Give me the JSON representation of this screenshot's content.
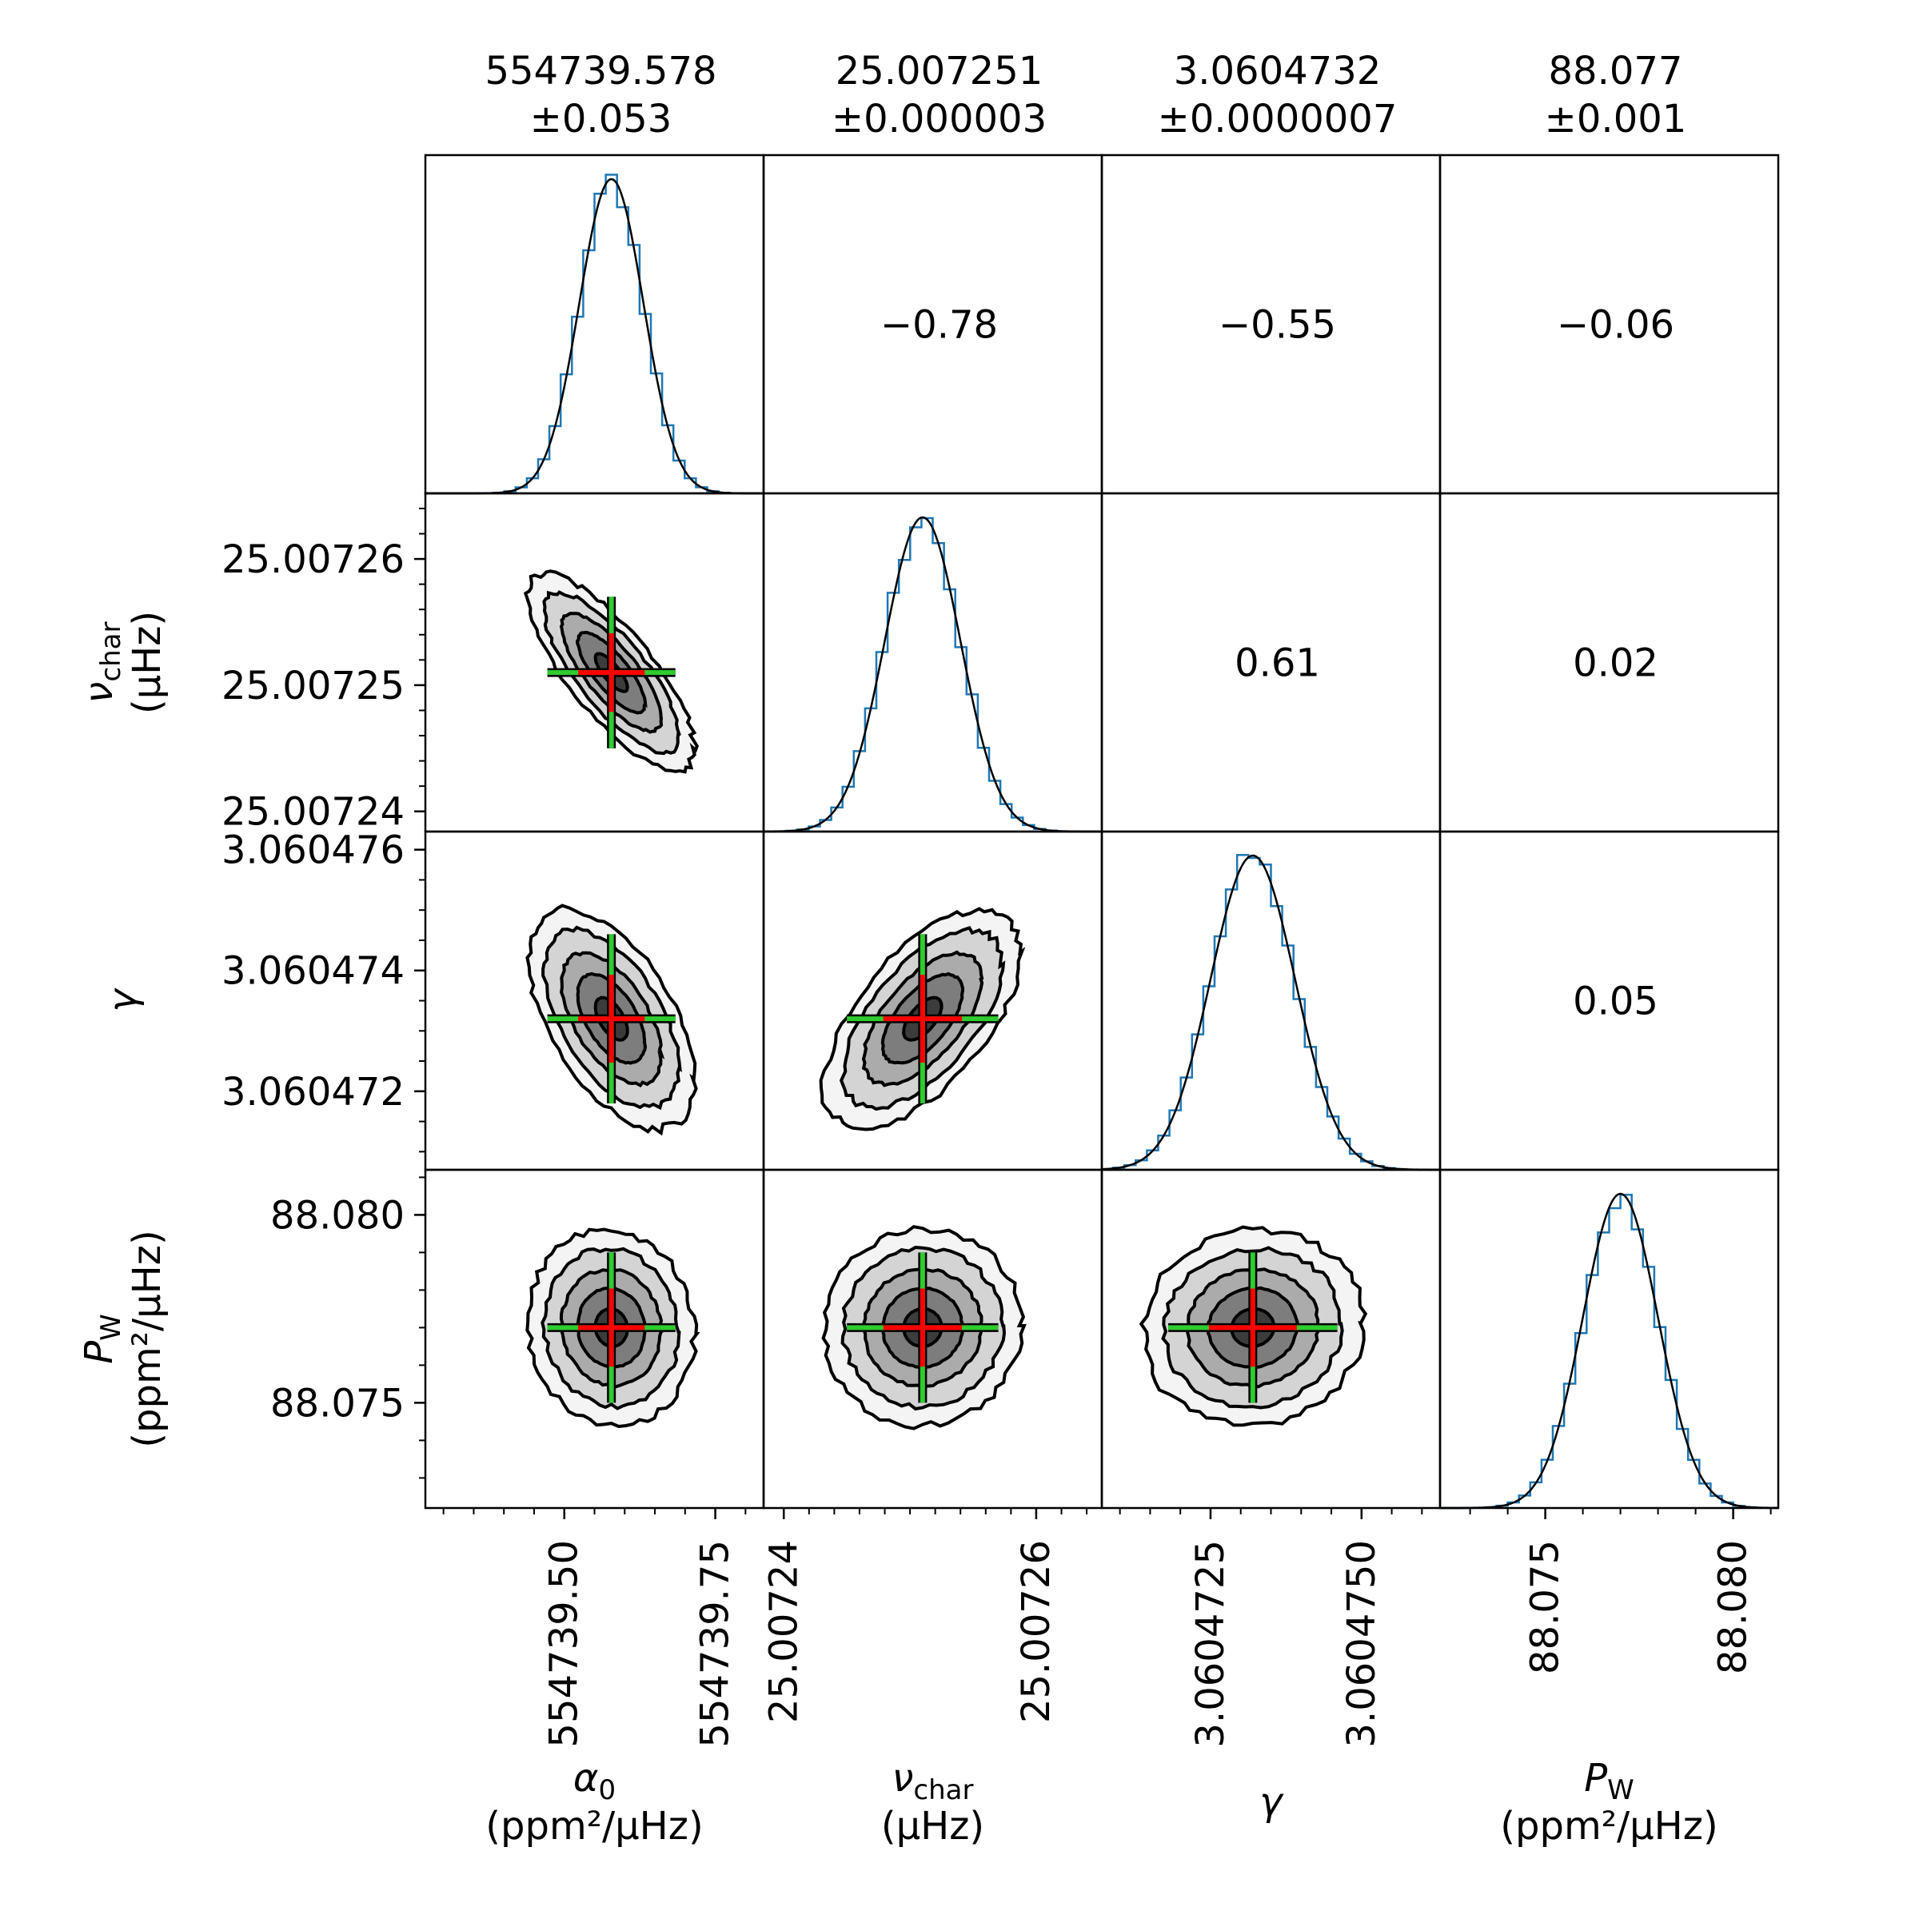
{
  "chart_data": {
    "type": "corner",
    "colors": {
      "histogram": "#1f77b4",
      "fit": "#000000",
      "cross_median": "#ff0000",
      "cross_range": "#2ecc2e",
      "contour_levels": [
        "#f4f4f4",
        "#d4d4d4",
        "#ababab",
        "#7d7d7d",
        "#3c3c3c"
      ]
    },
    "parameters": [
      {
        "name": "alpha_0",
        "label_main": "α",
        "label_sub": "0",
        "unit_text": "(ppm²/μHz)",
        "median": 554739.578,
        "sigma": 0.053,
        "summary_value": "554739.578",
        "summary_error": "±0.053",
        "range": [
          554739.27,
          554739.83
        ],
        "ticks": [
          554739.5,
          554739.75
        ],
        "tick_labels": [
          "554739.50",
          "554739.75"
        ],
        "minor_step": 0.05
      },
      {
        "name": "nu_char",
        "label_main": "ν",
        "label_sub": "char",
        "unit_text": "(μHz)",
        "median": 25.007251,
        "sigma": 3e-06,
        "summary_value": "25.007251",
        "summary_error": "±0.000003",
        "range": [
          25.0072384,
          25.0072652
        ],
        "ticks": [
          25.00724,
          25.00725,
          25.00726
        ],
        "tick_labels": [
          "25.00724",
          "25.00725",
          "25.00726"
        ],
        "bottom_ticks": [
          25.00724,
          25.00726
        ],
        "bottom_tick_labels": [
          "25.00724",
          "25.00726"
        ],
        "minor_step": 2e-06
      },
      {
        "name": "gamma",
        "label_main": "γ",
        "label_sub": "",
        "unit_text": "",
        "median": 3.0604732,
        "sigma": 7e-07,
        "summary_value": "3.0604732",
        "summary_error": "±0.0000007",
        "range": [
          3.0604707,
          3.0604763
        ],
        "ticks": [
          3.060472,
          3.060474,
          3.060476
        ],
        "tick_labels": [
          "3.060472",
          "3.060474",
          "3.060476"
        ],
        "bottom_ticks": [
          3.0604725,
          3.060475
        ],
        "bottom_tick_labels": [
          "3.0604725",
          "3.0604750"
        ],
        "minor_step": 5e-07
      },
      {
        "name": "P_W",
        "label_main": "P",
        "label_sub": "W",
        "unit_text": "(ppm²/μHz)",
        "median": 88.077,
        "sigma": 0.001,
        "summary_value": "88.077",
        "summary_error": "±0.001",
        "range": [
          88.0722,
          88.0812
        ],
        "ticks": [
          88.075,
          88.08
        ],
        "tick_labels": [
          "88.075",
          "88.080"
        ],
        "minor_step": 0.001
      }
    ],
    "correlations": [
      {
        "row": 0,
        "col": 1,
        "label": "−0.78",
        "value": -0.78
      },
      {
        "row": 0,
        "col": 2,
        "label": "−0.55",
        "value": -0.55
      },
      {
        "row": 0,
        "col": 3,
        "label": "−0.06",
        "value": -0.06
      },
      {
        "row": 1,
        "col": 2,
        "label": "0.61",
        "value": 0.61
      },
      {
        "row": 1,
        "col": 3,
        "label": "0.02",
        "value": 0.02
      },
      {
        "row": 2,
        "col": 3,
        "label": "0.05",
        "value": 0.05
      }
    ],
    "contour_sigma_levels": [
      2.6,
      2.1,
      1.55,
      1.05,
      0.5
    ],
    "histogram_bins": 30
  }
}
